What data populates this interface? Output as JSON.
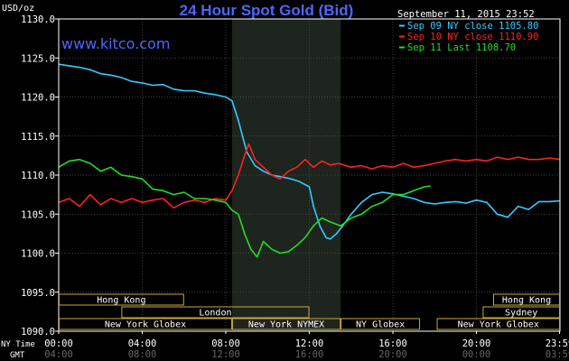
{
  "header": {
    "unit_label": "USD/oz",
    "title": "24 Hour Spot Gold (Bid)",
    "site": "www.kitco.com",
    "timestamp": "September 11, 2015 23:52"
  },
  "legend": [
    {
      "label": "Sep 09 NY close 1105.80",
      "color": "#33ccff"
    },
    {
      "label": "Sep 10 NY close 1110.90",
      "color": "#ff2222"
    },
    {
      "label": "Sep 11 Last 1108.70",
      "color": "#22dd22"
    }
  ],
  "colors": {
    "background": "#000000",
    "frame": "#ffffff",
    "grid": "#555555",
    "shade": "#1e241e",
    "session": "#c8a838"
  },
  "time_rows": {
    "ny_label": "NY Time",
    "gmt_label": "GMT"
  },
  "sessions": [
    {
      "label": "Hong Kong",
      "start_h": 0.0,
      "end_h": 6.0,
      "row": 0
    },
    {
      "label": "Hong Kong",
      "start_h": 20.8,
      "end_h": 24.0,
      "row": 0
    },
    {
      "label": "London",
      "start_h": 3.0,
      "end_h": 12.0,
      "row": 1
    },
    {
      "label": "Sydney",
      "start_h": 20.3,
      "end_h": 24.0,
      "row": 1
    },
    {
      "label": "New York Globex",
      "start_h": 0.0,
      "end_h": 8.3,
      "row": 2
    },
    {
      "label": "New York NYMEX",
      "start_h": 8.3,
      "end_h": 13.5,
      "row": 2
    },
    {
      "label": "NY Globex",
      "start_h": 13.5,
      "end_h": 17.3,
      "row": 2
    },
    {
      "label": "New York Globex",
      "start_h": 18.1,
      "end_h": 24.0,
      "row": 2
    }
  ],
  "chart_data": {
    "type": "line",
    "title": "24 Hour Spot Gold (Bid)",
    "ylabel": "USD/oz",
    "xlabel": "NY Time",
    "xlim": [
      0,
      24
    ],
    "ylim": [
      1090,
      1130
    ],
    "yticks": [
      1090,
      1095,
      1100,
      1105,
      1110,
      1115,
      1120,
      1125,
      1130
    ],
    "ytick_labels": [
      "1090.0",
      "1095.0",
      "1100.0",
      "1105.0",
      "1110.0",
      "1115.0",
      "1120.0",
      "1125.0",
      "1130.0"
    ],
    "xticks": [
      0,
      4,
      8,
      12,
      16,
      20,
      23.98
    ],
    "xtick_labels": [
      "00:00",
      "04:00",
      "08:00",
      "12:00",
      "16:00",
      "20:00",
      "23:59"
    ],
    "gmt_labels": [
      "04:00",
      "08:00",
      "12:00",
      "16:00",
      "20:00",
      "00:00",
      "03:59"
    ],
    "shaded_range": [
      8.3,
      13.5
    ],
    "grid": true,
    "legend_position": "top-right",
    "series": [
      {
        "name": "Sep 09 NY close 1105.80",
        "color": "#33ccff",
        "x": [
          0,
          0.5,
          1,
          1.5,
          2,
          2.5,
          3,
          3.5,
          4,
          4.5,
          5,
          5.5,
          6,
          6.5,
          7,
          7.5,
          8,
          8.3,
          8.6,
          9,
          9.4,
          9.8,
          10.2,
          10.6,
          11,
          11.5,
          12,
          12.2,
          12.5,
          12.8,
          13,
          13.3,
          13.6,
          14,
          14.5,
          15,
          15.5,
          16,
          16.5,
          17,
          17.5,
          18,
          18.5,
          19,
          19.5,
          20,
          20.5,
          21,
          21.5,
          22,
          22.5,
          23,
          23.5,
          24
        ],
        "y": [
          1124.2,
          1124.0,
          1123.8,
          1123.5,
          1123.0,
          1122.8,
          1122.5,
          1122.0,
          1121.8,
          1121.5,
          1121.6,
          1121.0,
          1120.8,
          1120.8,
          1120.5,
          1120.3,
          1120.0,
          1119.5,
          1117.0,
          1113.0,
          1111.2,
          1110.5,
          1110.0,
          1109.8,
          1109.6,
          1109.2,
          1108.5,
          1106.0,
          1103.5,
          1102.0,
          1101.8,
          1102.5,
          1103.5,
          1105.0,
          1106.5,
          1107.5,
          1107.8,
          1107.6,
          1107.3,
          1107.0,
          1106.5,
          1106.3,
          1106.5,
          1106.6,
          1106.4,
          1106.8,
          1106.5,
          1105.0,
          1104.6,
          1106.0,
          1105.6,
          1106.6,
          1106.6,
          1106.7
        ]
      },
      {
        "name": "Sep 10 NY close 1110.90",
        "color": "#ff2222",
        "x": [
          0,
          0.5,
          1,
          1.5,
          2,
          2.5,
          3,
          3.5,
          4,
          4.5,
          5,
          5.5,
          6,
          6.5,
          7,
          7.5,
          8,
          8.3,
          8.6,
          8.9,
          9.1,
          9.4,
          9.8,
          10.2,
          10.6,
          11,
          11.4,
          11.8,
          12.2,
          12.6,
          13,
          13.4,
          14,
          14.5,
          15,
          15.5,
          16,
          16.5,
          17,
          17.5,
          18,
          18.5,
          19,
          19.5,
          20,
          20.5,
          21,
          21.5,
          22,
          22.5,
          23,
          23.5,
          24
        ],
        "y": [
          1106.5,
          1107.0,
          1106.0,
          1107.5,
          1106.2,
          1107.0,
          1106.5,
          1107.0,
          1106.5,
          1106.8,
          1107.0,
          1105.8,
          1106.5,
          1106.8,
          1106.5,
          1107.0,
          1106.8,
          1108.0,
          1110.0,
          1112.5,
          1114.0,
          1112.0,
          1111.0,
          1110.0,
          1109.5,
          1110.5,
          1111.0,
          1112.0,
          1111.0,
          1111.8,
          1111.3,
          1111.5,
          1111.0,
          1111.2,
          1110.8,
          1111.2,
          1111.0,
          1111.5,
          1111.0,
          1111.2,
          1111.5,
          1111.8,
          1112.0,
          1111.8,
          1112.0,
          1111.8,
          1112.3,
          1112.0,
          1112.3,
          1112.0,
          1112.0,
          1112.2,
          1112.0
        ]
      },
      {
        "name": "Sep 11 Last 1108.70",
        "color": "#22dd22",
        "x": [
          0,
          0.5,
          1,
          1.5,
          2,
          2.5,
          3,
          3.5,
          4,
          4.5,
          5,
          5.5,
          6,
          6.5,
          7,
          7.5,
          8,
          8.3,
          8.6,
          8.9,
          9.2,
          9.5,
          9.8,
          10.2,
          10.6,
          11,
          11.4,
          11.8,
          12.2,
          12.6,
          13,
          13.5,
          14,
          14.5,
          15,
          15.5,
          16,
          16.5,
          17,
          17.5,
          17.8
        ],
        "y": [
          1111.0,
          1111.8,
          1112.0,
          1111.5,
          1110.5,
          1111.0,
          1110.0,
          1109.8,
          1109.5,
          1108.2,
          1108.0,
          1107.5,
          1107.8,
          1107.0,
          1107.0,
          1106.8,
          1106.5,
          1105.5,
          1105.0,
          1102.5,
          1100.5,
          1099.5,
          1101.5,
          1100.5,
          1100.0,
          1100.2,
          1101.0,
          1102.0,
          1103.5,
          1104.5,
          1104.0,
          1103.5,
          1104.5,
          1105.0,
          1106.0,
          1106.5,
          1107.5,
          1107.5,
          1108.0,
          1108.5,
          1108.6
        ]
      }
    ]
  }
}
